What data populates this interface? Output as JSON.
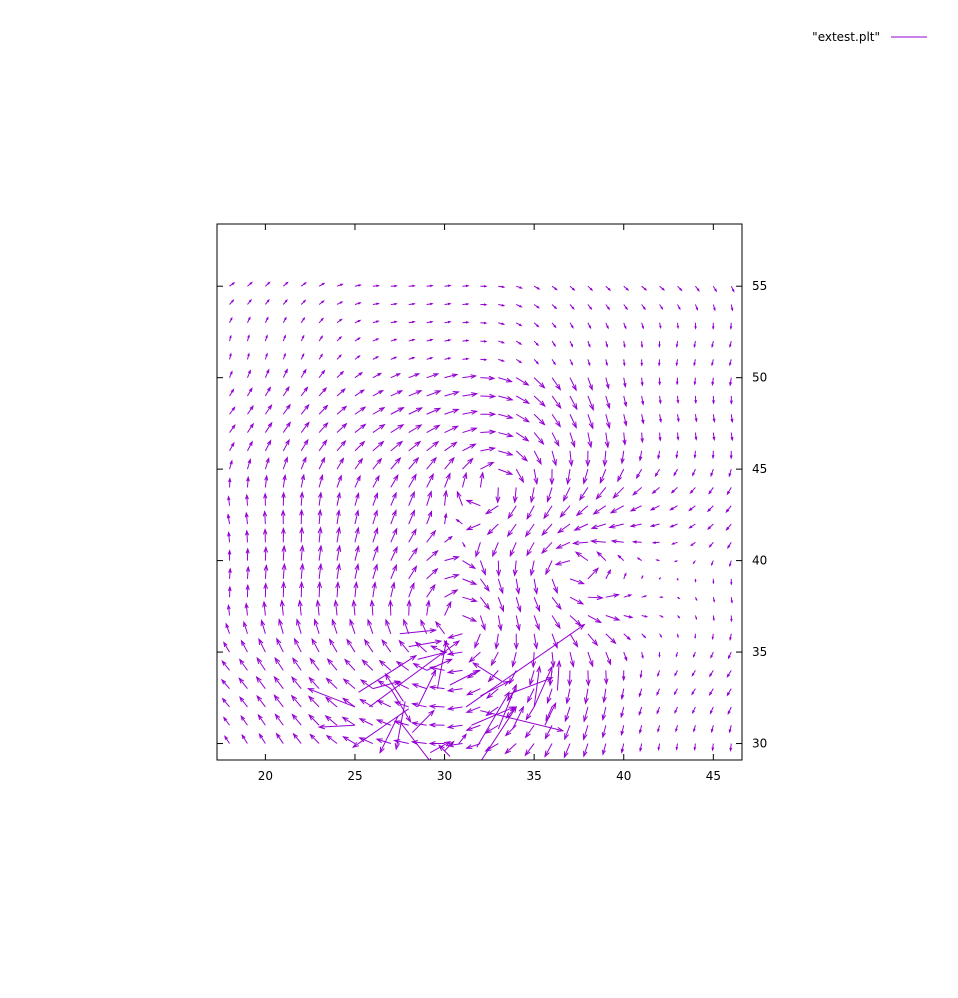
{
  "chart_data": {
    "type": "vector-field",
    "title": "",
    "xlabel": "",
    "ylabel": "",
    "xlim": [
      17.3,
      46.6
    ],
    "ylim": [
      29.1,
      58.4
    ],
    "x_ticks": [
      20,
      25,
      30,
      35,
      40,
      45
    ],
    "y_ticks": [
      30,
      35,
      40,
      45,
      50,
      55
    ],
    "y_axis_side": "right",
    "grid": false,
    "legend": {
      "label": "\"extest.plt\"",
      "placement": "top-right",
      "color": "#9400d3"
    },
    "series": [
      {
        "name": "\"extest.plt\"",
        "color": "#9400d3",
        "grid_x": {
          "start": 18,
          "step": 1,
          "count": 29
        },
        "grid_y": {
          "start": 30,
          "step": 1,
          "count": 26
        },
        "strong_vectors": [
          {
            "x": 25.0,
            "y": 31.0,
            "dx": -2.0,
            "dy": -0.1
          },
          {
            "x": 25.0,
            "y": 32.0,
            "dx": -2.6,
            "dy": 1.0
          },
          {
            "x": 25.8,
            "y": 32.0,
            "dx": 5.0,
            "dy": 3.6
          },
          {
            "x": 25.2,
            "y": 32.8,
            "dx": 3.2,
            "dy": 2.0
          },
          {
            "x": 26.0,
            "y": 33.0,
            "dx": 1.5,
            "dy": 0.4
          },
          {
            "x": 27.7,
            "y": 32.3,
            "dx": -1.0,
            "dy": 1.5
          },
          {
            "x": 27.4,
            "y": 31.5,
            "dx": -1.0,
            "dy": -2.0
          },
          {
            "x": 27.8,
            "y": 32.3,
            "dx": -0.5,
            "dy": -2.6
          },
          {
            "x": 27.0,
            "y": 33.0,
            "dx": 1.1,
            "dy": -1.8
          },
          {
            "x": 28.0,
            "y": 31.9,
            "dx": -3.1,
            "dy": -2.1
          },
          {
            "x": 27.5,
            "y": 31.2,
            "dx": 1.8,
            "dy": -2.3
          },
          {
            "x": 28.2,
            "y": 30.6,
            "dx": 1.2,
            "dy": 1.2
          },
          {
            "x": 28.5,
            "y": 32.0,
            "dx": 1.0,
            "dy": 2.0
          },
          {
            "x": 29.6,
            "y": 33.0,
            "dx": 0.5,
            "dy": 2.6
          },
          {
            "x": 29.2,
            "y": 29.5,
            "dx": 1.1,
            "dy": 0.6
          },
          {
            "x": 30.0,
            "y": 29.6,
            "dx": 0.5,
            "dy": 0.5
          },
          {
            "x": 30.8,
            "y": 30.0,
            "dx": 0.4,
            "dy": 0.5
          },
          {
            "x": 30.3,
            "y": 29.3,
            "dx": -0.6,
            "dy": 0.6
          },
          {
            "x": 31.2,
            "y": 32.0,
            "dx": 6.6,
            "dy": 4.5
          },
          {
            "x": 31.5,
            "y": 31.0,
            "dx": 2.4,
            "dy": 1.0
          },
          {
            "x": 31.8,
            "y": 29.8,
            "dx": 1.8,
            "dy": 3.0
          },
          {
            "x": 32.0,
            "y": 29.0,
            "dx": 2.0,
            "dy": 3.0
          },
          {
            "x": 33.0,
            "y": 30.8,
            "dx": 1.0,
            "dy": 2.4
          },
          {
            "x": 33.8,
            "y": 30.8,
            "dx": 0.6,
            "dy": 1.2
          },
          {
            "x": 32.0,
            "y": 31.8,
            "dx": 4.6,
            "dy": -1.1
          },
          {
            "x": 33.6,
            "y": 32.7,
            "dx": 2.4,
            "dy": 0.9
          },
          {
            "x": 32.0,
            "y": 32.6,
            "dx": 1.6,
            "dy": 0.8
          },
          {
            "x": 35.0,
            "y": 32.0,
            "dx": 1.0,
            "dy": 2.2
          },
          {
            "x": 35.0,
            "y": 32.0,
            "dx": 0.3,
            "dy": 2.2
          },
          {
            "x": 36.3,
            "y": 32.9,
            "dx": 0.1,
            "dy": 1.6
          },
          {
            "x": 35.6,
            "y": 31.0,
            "dx": 0.6,
            "dy": 1.2
          },
          {
            "x": 33.2,
            "y": 33.4,
            "dx": -1.6,
            "dy": 1.0
          },
          {
            "x": 30.3,
            "y": 33.2,
            "dx": 1.6,
            "dy": 0.8
          },
          {
            "x": 29.0,
            "y": 34.0,
            "dx": 1.4,
            "dy": 0.6
          },
          {
            "x": 28.5,
            "y": 34.6,
            "dx": 1.6,
            "dy": 0.4
          },
          {
            "x": 28.0,
            "y": 35.3,
            "dx": 1.8,
            "dy": 0.3
          },
          {
            "x": 27.5,
            "y": 36.0,
            "dx": 2.0,
            "dy": 0.2
          },
          {
            "x": 30.5,
            "y": 34.8,
            "dx": -0.5,
            "dy": 0.8
          }
        ]
      }
    ]
  }
}
